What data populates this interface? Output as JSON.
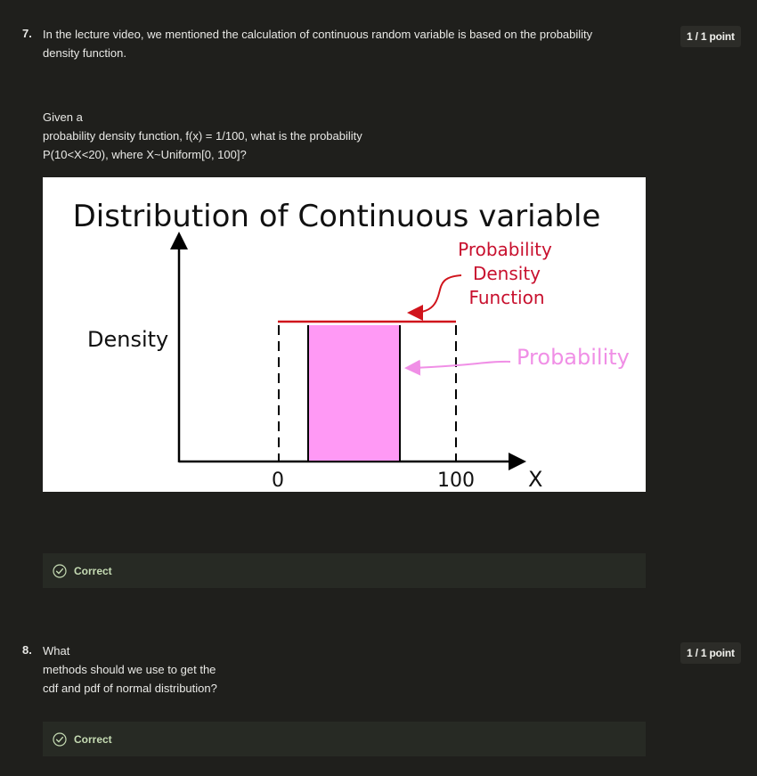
{
  "questions": [
    {
      "number": "7.",
      "text_lines": [
        "In the lecture video, we mentioned the calculation of continuous random variable is based on the probability",
        "density function."
      ],
      "detail_lines": [
        "Given a",
        "probability density function, f(x) = 1/100, what is the probability",
        "P(10<X<20), where X~Uniform[0, 100]?"
      ],
      "points": "1 / 1 point",
      "feedback": "Correct",
      "figure": {
        "title": "Distribution of Continuous variable",
        "ylabel": "Density",
        "xlabel": "X",
        "tick_left": "0",
        "tick_right": "100",
        "pdf_label_line1": "Probability",
        "pdf_label_line2": "Density",
        "pdf_label_line3": "Function",
        "prob_label": "Probability",
        "colors": {
          "pdf_line": "#d0141c",
          "pdf_text": "#c8102e",
          "prob_fill": "#ff99f5",
          "prob_text": "#f08fe6"
        }
      }
    },
    {
      "number": "8.",
      "text_lines": [
        "What",
        "methods should we use to get the",
        "cdf and pdf of normal distribution?"
      ],
      "points": "1 / 1 point",
      "feedback": "Correct"
    }
  ],
  "icons": {
    "feedback_icon": "check-circle-icon"
  }
}
